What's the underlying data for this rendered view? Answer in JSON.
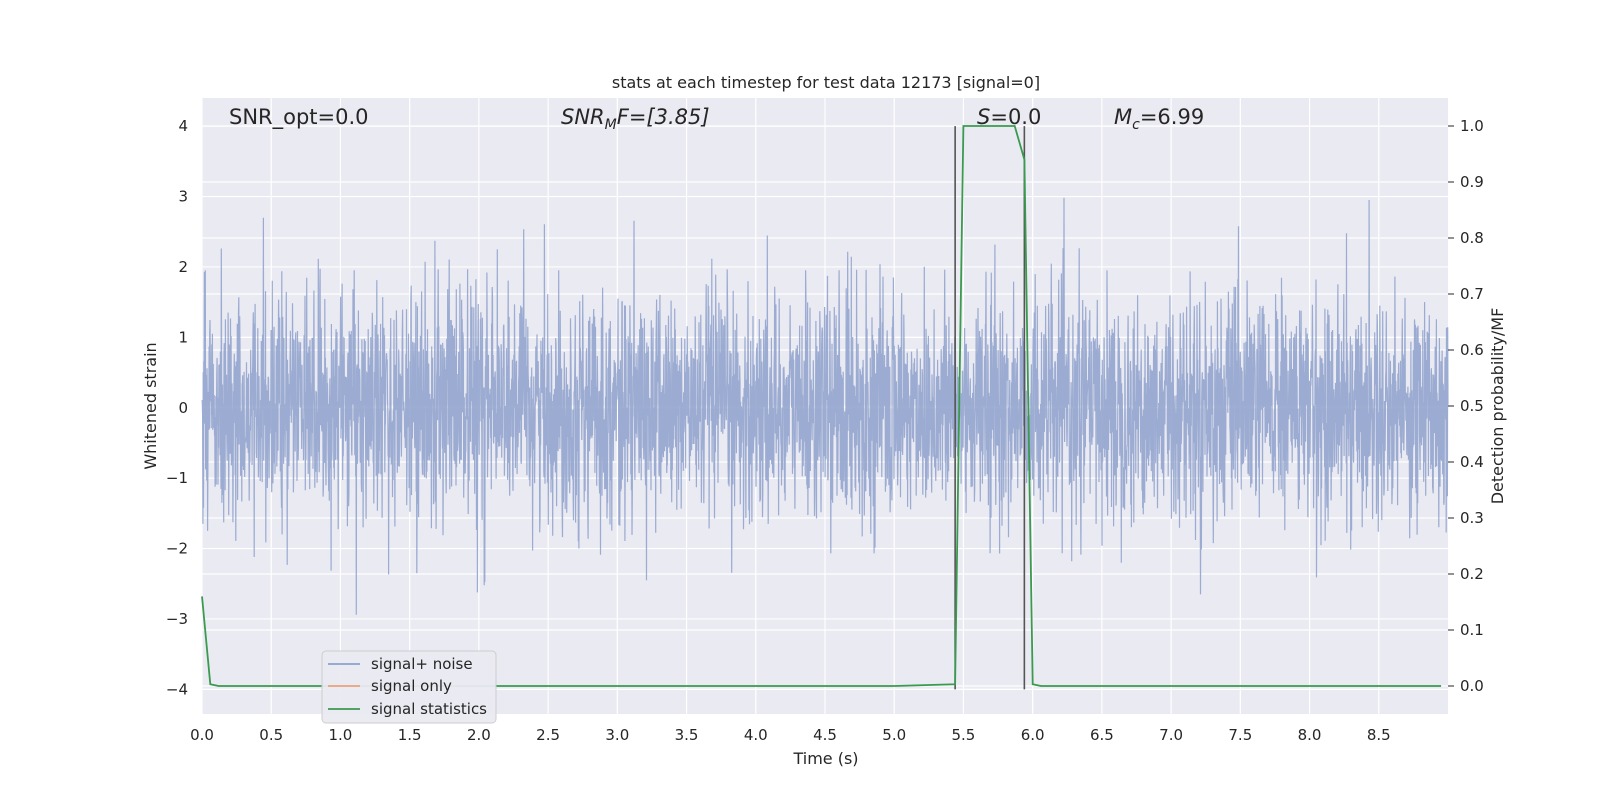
{
  "chart_data": {
    "type": "line",
    "title": "stats at each timestep for test data 12173 [signal=0]",
    "xlabel": "Time (s)",
    "ylabel": "Whitened strain",
    "ylabel_right": "Detection probability/MF",
    "xlim": [
      0.0,
      9.0
    ],
    "ylim": [
      -4.35,
      4.4
    ],
    "ylim_right": [
      -0.05,
      1.05
    ],
    "x_ticks": [
      "0.0",
      "0.5",
      "1.0",
      "1.5",
      "2.0",
      "2.5",
      "3.0",
      "3.5",
      "4.0",
      "4.5",
      "5.0",
      "5.5",
      "6.0",
      "6.5",
      "7.0",
      "7.5",
      "8.0",
      "8.5"
    ],
    "y_ticks": [
      "4",
      "3",
      "2",
      "1",
      "0",
      "−1",
      "−2",
      "−3",
      "−4"
    ],
    "y_ticks_right": [
      "1.0",
      "0.9",
      "0.8",
      "0.7",
      "0.6",
      "0.5",
      "0.4",
      "0.3",
      "0.2",
      "0.1",
      "0.0"
    ],
    "grid": true,
    "legend_position": "lower-left",
    "annotations": {
      "snr_opt": "SNR_opt=0.0",
      "snr_mf_base": "SNR",
      "snr_mf_sub": "M",
      "snr_mf_rest": "F=[3.85]",
      "s_italic": "S",
      "s_rest": "=0.0",
      "mc_base": "M",
      "mc_sub": "c",
      "mc_rest": "=6.99"
    },
    "vertical_markers": [
      {
        "x": 5.44,
        "y_range": [
          -4.0,
          4.0
        ]
      },
      {
        "x": 5.94,
        "y_range": [
          -4.0,
          4.0
        ]
      }
    ],
    "series": [
      {
        "name": "signal+ noise",
        "color": "#8da0cb",
        "description_value": "whitened noise strain, typical envelope",
        "noise_sigma": 0.78,
        "x_range": [
          0.0,
          9.0
        ]
      },
      {
        "name": "signal only",
        "color": "#e8a47c",
        "values": []
      },
      {
        "name": "signal statistics",
        "color": "#3a9a4e",
        "axis": "right",
        "x": [
          0.0,
          0.06,
          0.12,
          0.5,
          1.0,
          2.0,
          3.0,
          4.0,
          5.0,
          5.44,
          5.5,
          5.6,
          5.7,
          5.8,
          5.87,
          5.94,
          6.0,
          6.06,
          6.5,
          7.0,
          8.0,
          8.95
        ],
        "values": [
          0.16,
          0.003,
          0.0,
          0.0,
          0.0,
          0.0,
          0.0,
          0.0,
          0.0,
          0.003,
          1.0,
          1.0,
          1.0,
          1.0,
          1.0,
          0.94,
          0.003,
          0.0,
          0.0,
          0.0,
          0.0,
          0.0
        ]
      }
    ]
  }
}
